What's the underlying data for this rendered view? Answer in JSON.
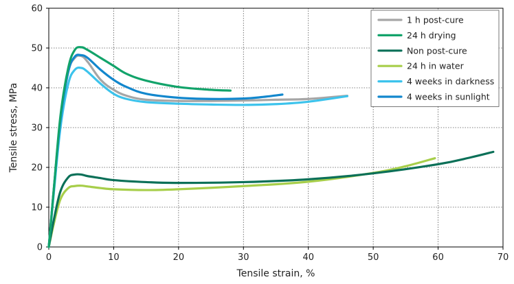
{
  "chart_data": {
    "type": "line",
    "xlabel": "Tensile strain, %",
    "ylabel": "Tensile stress, MPa",
    "xlim": [
      0,
      70
    ],
    "ylim": [
      0,
      60
    ],
    "xticks": [
      0,
      10,
      20,
      30,
      40,
      50,
      60,
      70
    ],
    "yticks": [
      0,
      10,
      20,
      30,
      40,
      50,
      60
    ],
    "grid": true,
    "legend_position": "top-right",
    "series": [
      {
        "name": "1 h post-cure",
        "color": "#a6a6a6",
        "x": [
          0,
          0.8,
          1.8,
          3,
          4,
          5,
          6,
          8,
          10,
          12,
          15,
          20,
          25,
          30,
          35,
          40,
          46
        ],
        "y": [
          0,
          15,
          32,
          44,
          47.5,
          48,
          46.5,
          42,
          39.5,
          38,
          37,
          36.7,
          36.7,
          36.8,
          37,
          37.2,
          38
        ]
      },
      {
        "name": "24 h drying",
        "color": "#12a36a",
        "x": [
          0,
          0.8,
          1.8,
          3,
          4,
          5,
          6,
          8,
          10,
          12,
          15,
          20,
          25,
          28
        ],
        "y": [
          0,
          15,
          33,
          45,
          49.5,
          50.2,
          49.5,
          47.5,
          45.5,
          43.5,
          41.8,
          40.2,
          39.5,
          39.3
        ]
      },
      {
        "name": "Non post-cure",
        "color": "#0b7058",
        "x": [
          0,
          0.8,
          1.8,
          3,
          4,
          5,
          6,
          8,
          10,
          15,
          20,
          30,
          40,
          50,
          60,
          65,
          68.5
        ],
        "y": [
          0,
          7,
          14,
          17.5,
          18.2,
          18.2,
          17.8,
          17.3,
          16.8,
          16.3,
          16.1,
          16.3,
          17,
          18.5,
          20.8,
          22.5,
          23.9
        ]
      },
      {
        "name": "24 h in water",
        "color": "#a7ce4a",
        "x": [
          0,
          0.8,
          1.8,
          3,
          4,
          5,
          6,
          8,
          10,
          15,
          20,
          30,
          40,
          50,
          55,
          59.5
        ],
        "y": [
          0,
          6,
          12,
          14.8,
          15.3,
          15.4,
          15.2,
          14.8,
          14.5,
          14.3,
          14.5,
          15.3,
          16.4,
          18.6,
          20.3,
          22.3
        ]
      },
      {
        "name": "4 weeks in darkness",
        "color": "#3cc3ec",
        "x": [
          0,
          0.8,
          1.8,
          3,
          4,
          5,
          6,
          8,
          10,
          12,
          15,
          20,
          25,
          30,
          35,
          40,
          46
        ],
        "y": [
          0,
          14,
          30,
          41,
          44.5,
          45,
          44,
          41,
          38.5,
          37.2,
          36.4,
          36,
          35.8,
          35.7,
          35.9,
          36.5,
          37.9
        ]
      },
      {
        "name": "4 weeks in sunlight",
        "color": "#1287cd",
        "x": [
          0,
          0.8,
          1.8,
          3,
          4,
          5,
          6,
          8,
          10,
          12,
          15,
          20,
          25,
          30,
          33,
          36
        ],
        "y": [
          0,
          15,
          32,
          44,
          47.8,
          48.2,
          47.5,
          44.5,
          42,
          40.2,
          38.5,
          37.5,
          37.2,
          37.3,
          37.7,
          38.3
        ]
      }
    ]
  }
}
